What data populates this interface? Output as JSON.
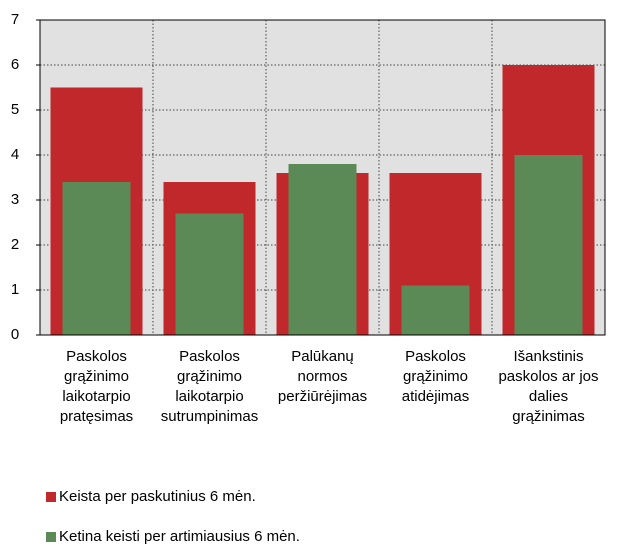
{
  "chart_data": {
    "type": "bar",
    "categories": [
      "Paskolos\ngrąžinimo\nlaikotarpio\npratęsimas",
      "Paskolos\ngrąžinimo\nlaikotarpio\nsutrumpinimas",
      "Palūkanų\nnormos\nperžiūrėjimas",
      "Paskolos\ngrąžinimo\natidėjimas",
      "Išankstinis\npaskolos ar jos\ndalies\ngrąžinimas"
    ],
    "series": [
      {
        "name": "Keista per paskutinius 6 mėn.",
        "color": "#c0282c",
        "values": [
          5.5,
          3.4,
          3.6,
          3.6,
          6
        ]
      },
      {
        "name": "Ketina keisti per artimiausius 6 mėn.",
        "color": "#5b8a57",
        "values": [
          3.4,
          2.7,
          3.8,
          1.1,
          4
        ]
      }
    ],
    "ylim": [
      0,
      7
    ],
    "yticks": [
      0,
      1,
      2,
      3,
      4,
      5,
      6,
      7
    ],
    "grid": true,
    "legend": "bottom"
  }
}
